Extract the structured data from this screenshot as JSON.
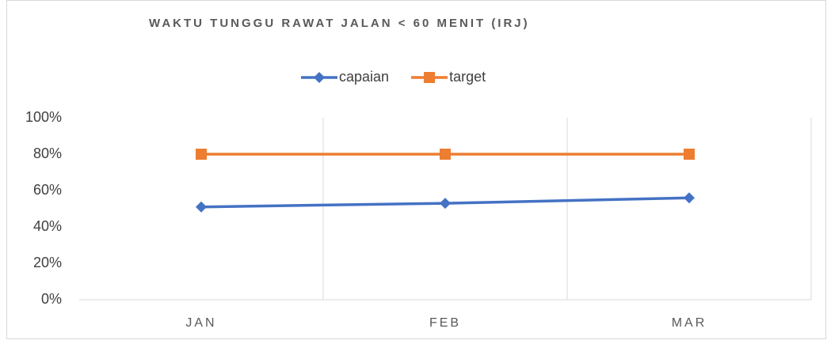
{
  "chart_data": {
    "type": "line",
    "title": "WAKTU TUNGGU RAWAT JALAN < 60 MENIT (IRJ)",
    "categories": [
      "JAN",
      "FEB",
      "MAR"
    ],
    "series": [
      {
        "name": "capaian",
        "color": "#4472c4",
        "marker": "diamond",
        "values": [
          51,
          53,
          56
        ]
      },
      {
        "name": "target",
        "color": "#ed7d31",
        "marker": "square",
        "values": [
          80,
          80,
          80
        ]
      }
    ],
    "ylim": [
      0,
      100
    ],
    "yticks": [
      {
        "value": 0,
        "label": "0%"
      },
      {
        "value": 20,
        "label": "20%"
      },
      {
        "value": 40,
        "label": "40%"
      },
      {
        "value": 60,
        "label": "60%"
      },
      {
        "value": 80,
        "label": "80%"
      },
      {
        "value": 100,
        "label": "100%"
      }
    ],
    "legend": "top"
  }
}
